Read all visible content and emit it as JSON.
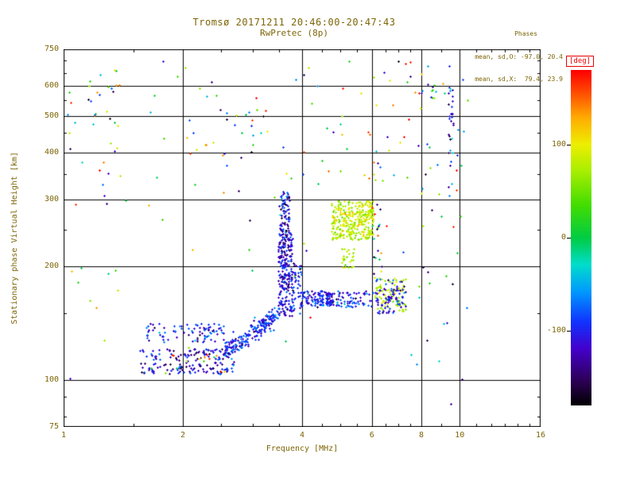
{
  "header": {
    "title": "Tromsø 20171211 20:46:00-20:47:43",
    "subtitle": "RwPretec (8p)"
  },
  "stats": {
    "heading": "Phases",
    "o_line": "mean, sd,O: -97.0, 20.4",
    "x_line": "mean, sd,X:  79.4, 23.9"
  },
  "colors": {
    "text": "#7d6608",
    "deg": "#e80000",
    "grid": "#000000",
    "background": "#ffffff"
  },
  "chart_data": {
    "type": "scatter",
    "title": "Tromsø 20171211 20:46:00-20:47:43",
    "subtitle": "RwPretec (8p)",
    "xlabel": "Frequency [MHz]",
    "ylabel": "Stationary phase Virtual Height [km]",
    "xscale": "log",
    "yscale": "log",
    "xlim": [
      1,
      16
    ],
    "ylim": [
      75,
      750
    ],
    "xticks": [
      1,
      2,
      4,
      6,
      8,
      10,
      16
    ],
    "yticks": [
      75,
      100,
      200,
      300,
      400,
      500,
      600,
      750
    ],
    "x_minor": [
      1.5,
      2.5,
      3,
      3.5,
      4.5,
      5,
      5.5,
      6.5,
      7,
      7.5,
      9,
      11,
      12,
      13,
      14,
      15
    ],
    "y_minor": [
      80,
      90,
      150,
      250,
      350,
      450,
      550,
      650,
      700
    ],
    "grid": true,
    "marker": "plus",
    "colorbar": {
      "label": "[deg]",
      "range": [
        -180,
        180
      ],
      "ticks": [
        100,
        0,
        -100
      ],
      "position": "right",
      "stops": [
        [
          0.0,
          "#000000"
        ],
        [
          0.07,
          "#2a0050"
        ],
        [
          0.17,
          "#4400cc"
        ],
        [
          0.25,
          "#1133ff"
        ],
        [
          0.34,
          "#0099ff"
        ],
        [
          0.42,
          "#00ddcc"
        ],
        [
          0.5,
          "#00cc44"
        ],
        [
          0.6,
          "#44dd00"
        ],
        [
          0.7,
          "#aaee00"
        ],
        [
          0.78,
          "#eeee00"
        ],
        [
          0.86,
          "#ffaa00"
        ],
        [
          0.94,
          "#ff4400"
        ],
        [
          1.0,
          "#ff0000"
        ]
      ]
    },
    "clusters": [
      {
        "n": 170,
        "f": [
          1.55,
          2.7
        ],
        "h": [
          104,
          121
        ],
        "pm": -115,
        "ps": 28
      },
      {
        "n": 20,
        "f": [
          1.55,
          2.7
        ],
        "h": [
          103,
          122
        ],
        "pr": true
      },
      {
        "n": 85,
        "f": [
          1.6,
          2.55
        ],
        "h": [
          126,
          141
        ],
        "pm": -100,
        "ps": 30
      },
      {
        "n": 210,
        "f": [
          2.55,
          3.5
        ],
        "h": [
          119,
          150
        ],
        "follow": true,
        "hj": 4,
        "pm": -95,
        "ps": 22
      },
      {
        "n": 240,
        "f": [
          3.48,
          3.78
        ],
        "h": [
          148,
          245
        ],
        "pm": -115,
        "ps": 25
      },
      {
        "n": 80,
        "f": [
          3.5,
          3.72
        ],
        "h": [
          245,
          315
        ],
        "pm": -110,
        "ps": 30
      },
      {
        "n": 40,
        "f": [
          3.78,
          3.98
        ],
        "h": [
          150,
          205
        ],
        "pm": -105,
        "ps": 30
      },
      {
        "n": 130,
        "f": [
          3.95,
          4.8
        ],
        "h": [
          157,
          172
        ],
        "pm": -100,
        "ps": 22
      },
      {
        "n": 65,
        "f": [
          4.8,
          6.05
        ],
        "h": [
          156,
          172
        ],
        "pm": -95,
        "ps": 30
      },
      {
        "n": 300,
        "f": [
          4.75,
          6.05
        ],
        "h": [
          235,
          298
        ],
        "pm": 80,
        "ps": 18
      },
      {
        "n": 25,
        "f": [
          5.0,
          5.45
        ],
        "h": [
          198,
          222
        ],
        "pm": 72,
        "ps": 15
      },
      {
        "n": 80,
        "f": [
          6.1,
          7.3
        ],
        "h": [
          152,
          186
        ],
        "pm": 78,
        "ps": 18
      },
      {
        "n": 80,
        "f": [
          6.1,
          7.3
        ],
        "h": [
          150,
          185
        ],
        "pm": -105,
        "ps": 22
      },
      {
        "n": 18,
        "f": [
          6.0,
          6.35
        ],
        "h": [
          190,
          305
        ],
        "pr": true
      },
      {
        "n": 28,
        "f": [
          9.35,
          9.65
        ],
        "h": [
          320,
          600
        ],
        "pm": -100,
        "ps": 45
      },
      {
        "n": 12,
        "f": [
          7.7,
          8.7
        ],
        "h": [
          540,
          615
        ],
        "pr": true
      },
      {
        "n": 45,
        "f": [
          1.02,
          1.4
        ],
        "h": [
          88,
          680
        ],
        "pr": true
      },
      {
        "n": 130,
        "f": [
          1.05,
          10.5
        ],
        "h": [
          85,
          700
        ],
        "pr": true
      },
      {
        "n": 25,
        "f": [
          2.0,
          3.3
        ],
        "h": [
          380,
          520
        ],
        "pr": true
      },
      {
        "n": 18,
        "f": [
          4.0,
          7.0
        ],
        "h": [
          330,
          480
        ],
        "pr": true
      }
    ]
  }
}
